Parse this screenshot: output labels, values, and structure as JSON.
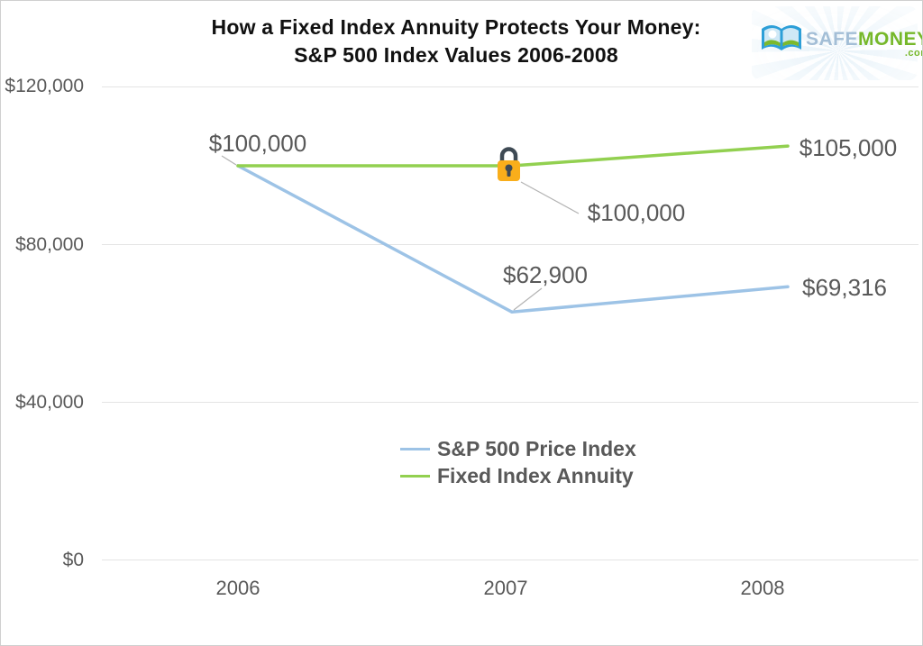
{
  "title": {
    "line1": "How a Fixed Index Annuity Protects Your Money:",
    "line2": "S&P 500 Index Values 2006-2008"
  },
  "logo": {
    "safe": "SAFE",
    "money": "MONEY",
    "com": ".com"
  },
  "chart_data": {
    "type": "line",
    "title": "How a Fixed Index Annuity Protects Your Money: S&P 500 Index Values 2006-2008",
    "categories": [
      "2006",
      "2007",
      "2008"
    ],
    "series": [
      {
        "name": "S&P 500 Price Index",
        "color": "#9DC3E6",
        "values": [
          100000,
          62900,
          69316
        ],
        "data_labels": [
          "$100,000",
          "$62,900",
          "$69,316"
        ]
      },
      {
        "name": "Fixed Index Annuity",
        "color": "#92D050",
        "values": [
          100000,
          100000,
          105000
        ],
        "data_labels": [
          "$100,000",
          "$100,000",
          "$105,000"
        ]
      }
    ],
    "ylim": [
      0,
      120000
    ],
    "yticks": [
      0,
      40000,
      80000,
      120000
    ],
    "ytick_labels": [
      "$0",
      "$40,000",
      "$80,000",
      "$120,000"
    ],
    "grid": true,
    "legend_position": "center-bottom",
    "annotations": [
      {
        "icon": "lock",
        "series": "Fixed Index Annuity",
        "category": "2007",
        "label": "$100,000"
      }
    ]
  },
  "axis": {
    "y_labels": [
      "$120,000",
      "$80,000",
      "$40,000",
      "$0"
    ],
    "x_labels": [
      "2006",
      "2007",
      "2008"
    ]
  },
  "data_labels": {
    "sp_2006": "$100,000",
    "sp_2007": "$62,900",
    "sp_2008": "$69,316",
    "fia_2007": "$100,000",
    "fia_2008": "$105,000"
  },
  "legend": {
    "items": [
      {
        "label": "S&P 500 Price Index",
        "color": "#9DC3E6"
      },
      {
        "label": "Fixed Index Annuity",
        "color": "#92D050"
      }
    ]
  },
  "colors": {
    "sp_line": "#9DC3E6",
    "fia_line": "#92D050",
    "grid": "#E4E4E4",
    "axis_text": "#595959",
    "lock_body": "#F9AE1B",
    "lock_shackle": "#3E4A54"
  }
}
